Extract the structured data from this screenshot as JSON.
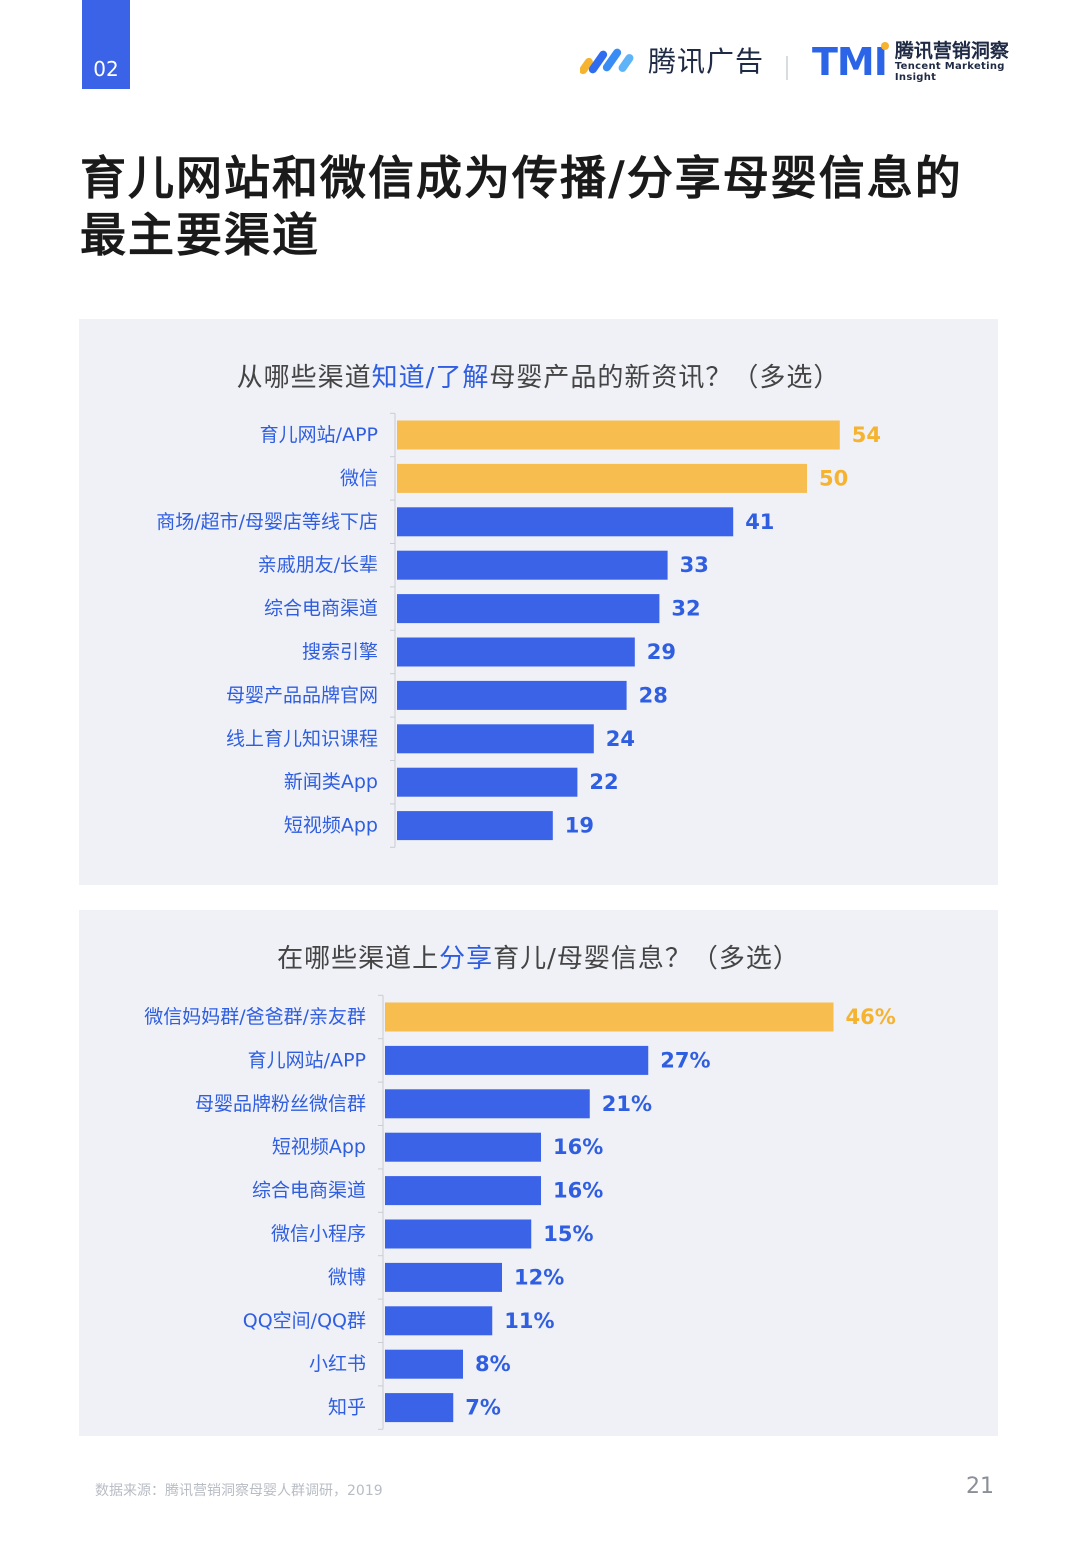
{
  "page_tab": "02",
  "header": {
    "logo_ta": "腾讯广告",
    "logo_tmi_mark": "TMI",
    "logo_tmi_cn": "腾讯营销洞察",
    "logo_tmi_en": "Tencent Marketing Insight"
  },
  "title": "育儿网站和微信成为传播/分享母婴信息的最主要渠道",
  "colors": {
    "accent_blue": "#3a63e8",
    "highlight_orange": "#f7bd4f",
    "label_blue": "#2f5ee0",
    "orange_text": "#f5b330"
  },
  "chart1_title": {
    "pre": "从哪些渠道",
    "hl": "知道/了解",
    "post": "母婴产品的新资讯？（多选）"
  },
  "chart2_title": {
    "pre": "在哪些渠道上",
    "hl": "分享",
    "post": "育儿/母婴信息？（多选）"
  },
  "chart_data": [
    {
      "type": "bar",
      "orientation": "horizontal",
      "title": "从哪些渠道知道/了解母婴产品的新资讯？（多选）",
      "categories": [
        "育儿网站/APP",
        "微信",
        "商场/超市/母婴店等线下店",
        "亲戚朋友/长辈",
        "综合电商渠道",
        "搜索引擎",
        "母婴产品品牌官网",
        "线上育儿知识课程",
        "新闻类App",
        "短视频App"
      ],
      "values": [
        54,
        50,
        41,
        33,
        32,
        29,
        28,
        24,
        22,
        19
      ],
      "value_labels": [
        "54",
        "50",
        "41",
        "33",
        "32",
        "29",
        "28",
        "24",
        "22",
        "19"
      ],
      "highlight": [
        true,
        true,
        false,
        false,
        false,
        false,
        false,
        false,
        false,
        false
      ],
      "xlim": [
        0,
        60
      ]
    },
    {
      "type": "bar",
      "orientation": "horizontal",
      "title": "在哪些渠道上分享育儿/母婴信息？（多选）",
      "categories": [
        "微信妈妈群/爸爸群/亲友群",
        "育儿网站/APP",
        "母婴品牌粉丝微信群",
        "短视频App",
        "综合电商渠道",
        "微信小程序",
        "微博",
        "QQ空间/QQ群",
        "小红书",
        "知乎"
      ],
      "values": [
        46,
        27,
        21,
        16,
        16,
        15,
        12,
        11,
        8,
        7
      ],
      "value_labels": [
        "46%",
        "27%",
        "21%",
        "16%",
        "16%",
        "15%",
        "12%",
        "11%",
        "8%",
        "7%"
      ],
      "highlight": [
        true,
        false,
        false,
        false,
        false,
        false,
        false,
        false,
        false,
        false
      ],
      "xlim": [
        0,
        50
      ]
    }
  ],
  "footer": {
    "source": "数据来源：腾讯营销洞察母婴人群调研，2019",
    "page_number": "21"
  }
}
